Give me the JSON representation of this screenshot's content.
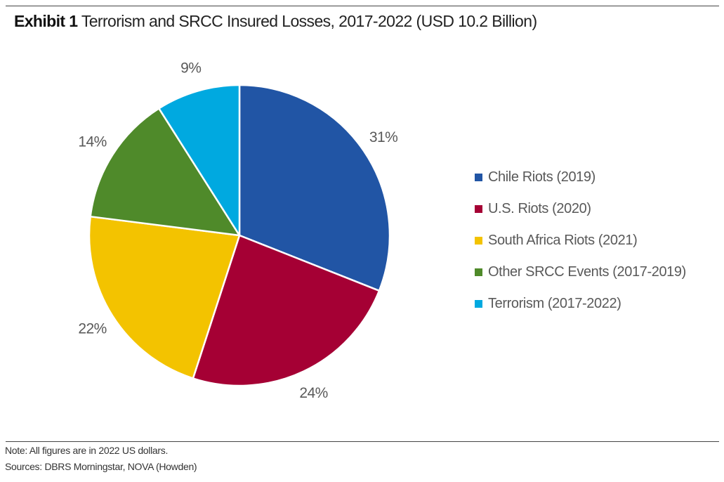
{
  "header": {
    "exhibit": "Exhibit 1",
    "title": "Terrorism and SRCC Insured Losses, 2017-2022 (USD 10.2 Billion)"
  },
  "chart_data": {
    "type": "pie",
    "start_angle": "12 o'clock",
    "direction": "clockwise",
    "slices": [
      {
        "name": "Chile Riots (2019)",
        "value": 31,
        "label": "31%",
        "color": "#2155A5"
      },
      {
        "name": "U.S. Riots (2020)",
        "value": 24,
        "label": "24%",
        "color": "#A50034"
      },
      {
        "name": "South Africa Riots (2021)",
        "value": 22,
        "label": "22%",
        "color": "#F3C300"
      },
      {
        "name": "Other SRCC Events (2017-2019)",
        "value": 14,
        "label": "14%",
        "color": "#4F8A2A"
      },
      {
        "name": "Terrorism (2017-2022)",
        "value": 9,
        "label": "9%",
        "color": "#00A9E0"
      }
    ],
    "legend_position": "right"
  },
  "footer": {
    "note": "Note: All figures are in 2022 US dollars.",
    "sources": "Sources: DBRS Morningstar, NOVA (Howden)"
  }
}
